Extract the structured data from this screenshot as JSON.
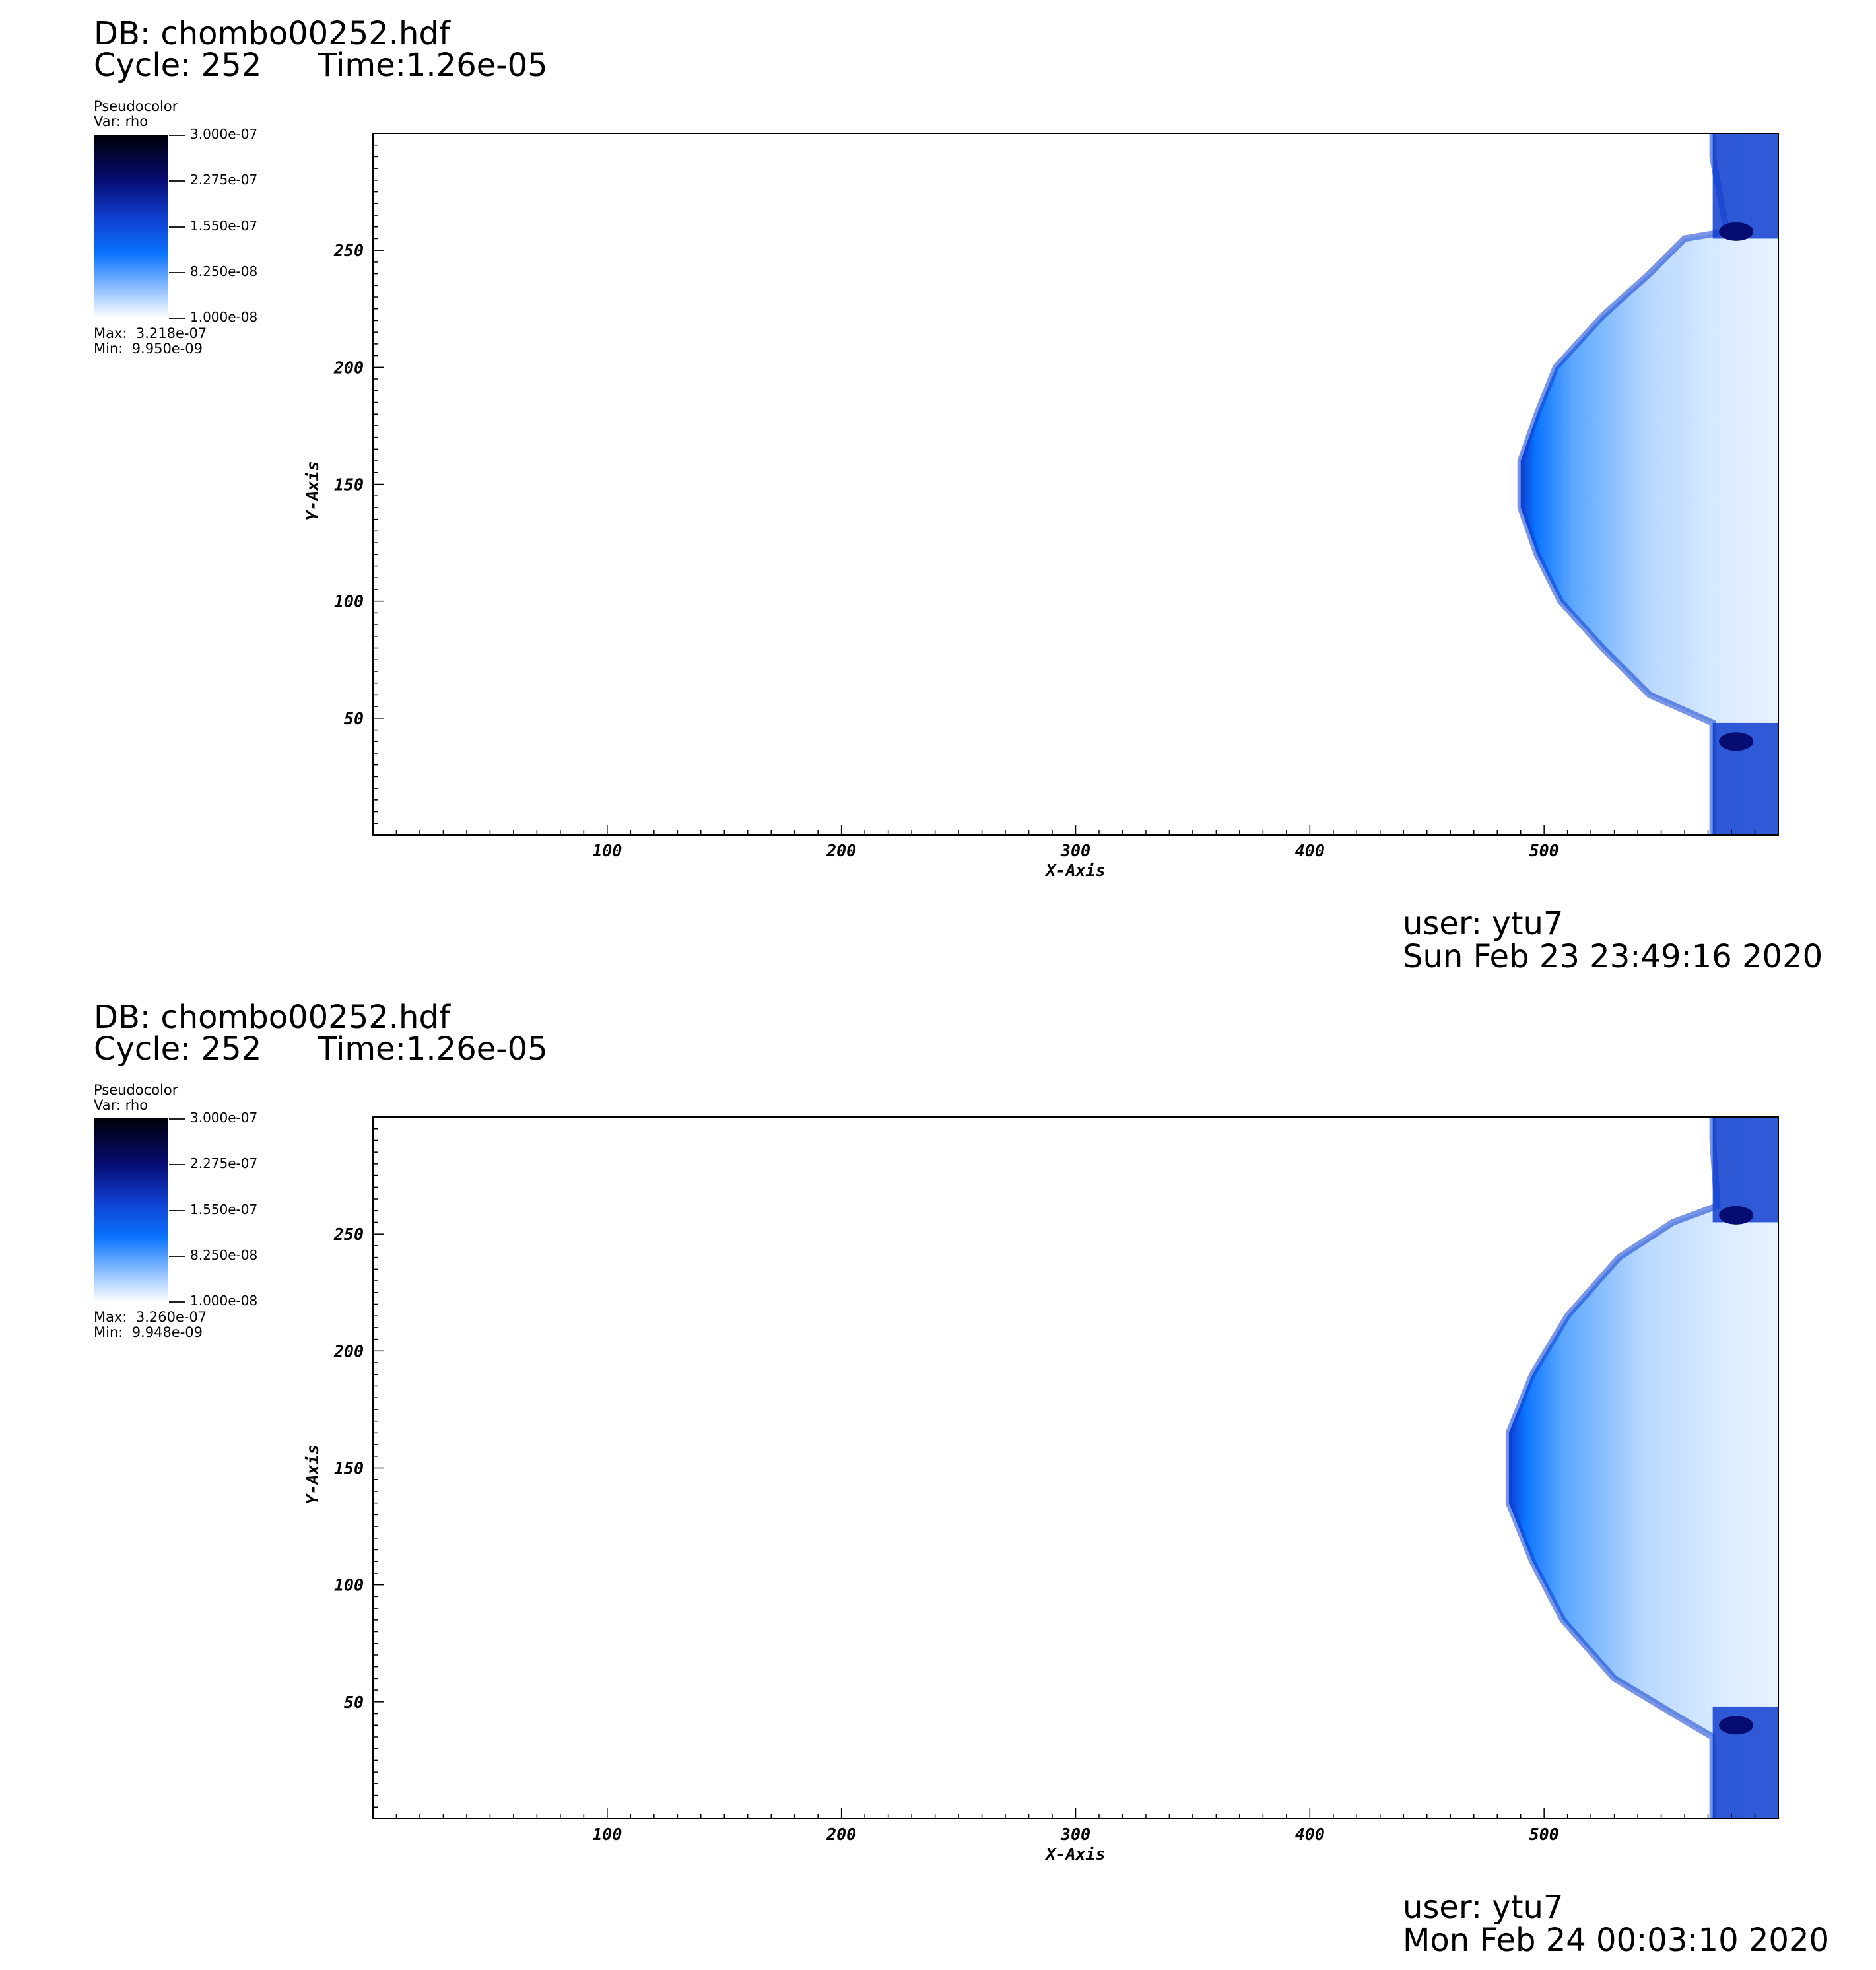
{
  "panels": [
    {
      "db": "DB: chombo00252.hdf",
      "cycle": "Cycle: 252",
      "time": "Time:1.26e-05",
      "legend": {
        "title": "Pseudocolor",
        "var": "Var: rho",
        "ticks": [
          "3.000e-07",
          "2.275e-07",
          "1.550e-07",
          "8.250e-08",
          "1.000e-08"
        ],
        "max": "Max:  3.218e-07",
        "min": "Min:  9.950e-09"
      },
      "user": "user: ytu7",
      "date": "Sun Feb 23 23:49:16 2020",
      "image_name": "rho-pseudocolor-bow-shock-1"
    },
    {
      "db": "DB: chombo00252.hdf",
      "cycle": "Cycle: 252",
      "time": "Time:1.26e-05",
      "legend": {
        "title": "Pseudocolor",
        "var": "Var: rho",
        "ticks": [
          "3.000e-07",
          "2.275e-07",
          "1.550e-07",
          "8.250e-08",
          "1.000e-08"
        ],
        "max": "Max:  3.260e-07",
        "min": "Min:  9.948e-09"
      },
      "user": "user: ytu7",
      "date": "Mon Feb 24 00:03:10 2020",
      "image_name": "rho-pseudocolor-bow-shock-2"
    }
  ],
  "chart_data": [
    {
      "type": "heatmap",
      "title": "",
      "xlabel": "X-Axis",
      "ylabel": "Y-Axis",
      "xlim": [
        0,
        600
      ],
      "ylim": [
        0,
        300
      ],
      "xticks": [
        "100",
        "200",
        "300",
        "400",
        "500"
      ],
      "yticks": [
        "50",
        "100",
        "150",
        "200",
        "250"
      ],
      "colorbar": {
        "variable": "rho",
        "range": [
          1e-08,
          3e-07
        ],
        "colors": [
          "#ffffff",
          "#0a74ff",
          "#0f3ecf",
          "#060c72",
          "#000008"
        ]
      },
      "dense_region_boundary": [
        [
          572,
          300
        ],
        [
          572,
          290
        ],
        [
          578,
          258
        ],
        [
          560,
          255
        ],
        [
          545,
          240
        ],
        [
          525,
          222
        ],
        [
          505,
          200
        ],
        [
          497,
          180
        ],
        [
          490,
          160
        ],
        [
          490,
          140
        ],
        [
          497,
          120
        ],
        [
          507,
          100
        ],
        [
          525,
          80
        ],
        [
          545,
          60
        ],
        [
          572,
          48
        ],
        [
          572,
          0
        ]
      ]
    },
    {
      "type": "heatmap",
      "title": "",
      "xlabel": "X-Axis",
      "ylabel": "Y-Axis",
      "xlim": [
        0,
        600
      ],
      "ylim": [
        0,
        300
      ],
      "xticks": [
        "100",
        "200",
        "300",
        "400",
        "500"
      ],
      "yticks": [
        "50",
        "100",
        "150",
        "200",
        "250"
      ],
      "colorbar": {
        "variable": "rho",
        "range": [
          1e-08,
          3e-07
        ],
        "colors": [
          "#ffffff",
          "#0a74ff",
          "#0f3ecf",
          "#060c72",
          "#000008"
        ]
      },
      "dense_region_boundary": [
        [
          572,
          300
        ],
        [
          572,
          290
        ],
        [
          574,
          262
        ],
        [
          555,
          255
        ],
        [
          532,
          240
        ],
        [
          510,
          215
        ],
        [
          495,
          190
        ],
        [
          485,
          165
        ],
        [
          485,
          135
        ],
        [
          495,
          110
        ],
        [
          508,
          85
        ],
        [
          530,
          60
        ],
        [
          560,
          42
        ],
        [
          572,
          35
        ],
        [
          572,
          0
        ]
      ]
    }
  ]
}
